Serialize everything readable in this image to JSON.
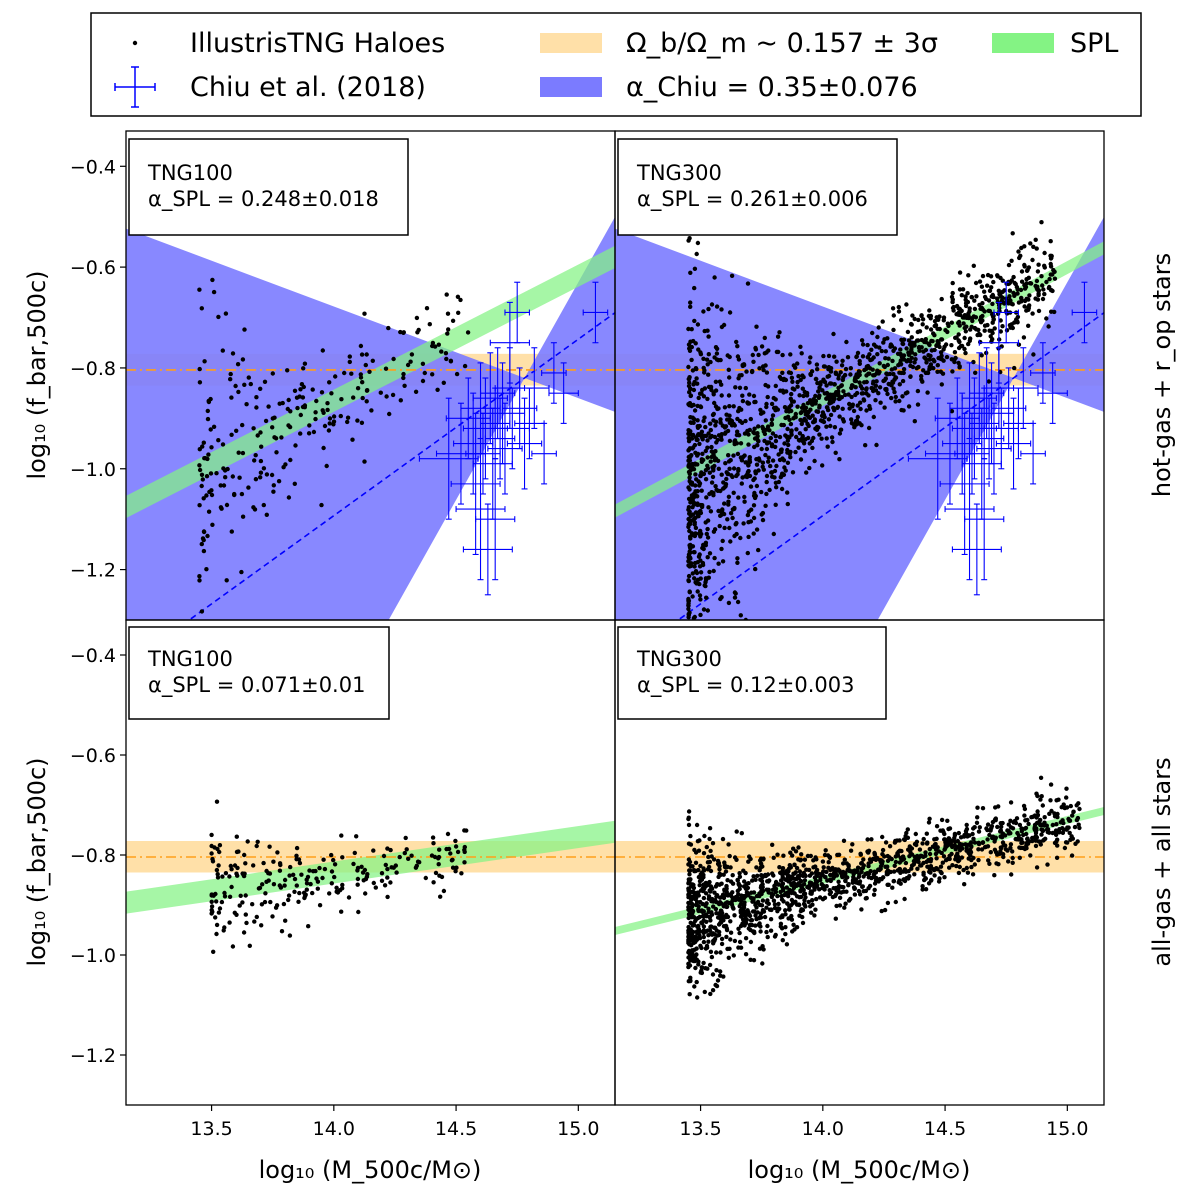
{
  "chart_data": {
    "type": "scatter",
    "xlim": [
      13.15,
      15.15
    ],
    "ylim": [
      -1.3,
      -0.33
    ],
    "x_ticks": [
      13.5,
      14.0,
      14.5,
      15.0
    ],
    "x_tick_labels": [
      "13.5",
      "14.0",
      "14.5",
      "15.0"
    ],
    "y_ticks": [
      -1.2,
      -1.0,
      -0.8,
      -0.6,
      -0.4
    ],
    "y_tick_labels": [
      "−1.2",
      "−1.0",
      "−0.8",
      "−0.6",
      "−0.4"
    ],
    "ylabel": "log₁₀ (f_bar,500c)",
    "xlabel": "log₁₀ (M_500c/M⊙)",
    "row_labels": [
      "hot-gas + r_op stars",
      "all-gas + all stars"
    ],
    "baryon_fraction": {
      "log_value": -0.804,
      "band": [
        -0.835,
        -0.772
      ]
    },
    "chiu_fit": {
      "alpha": 0.35,
      "pivot_x": 14.78,
      "pivot_y": -0.82,
      "at_x15_low": -0.86,
      "at_x15_high": -0.63
    },
    "colors": {
      "haloes": "#000000",
      "chiu": "#0000ff",
      "chiu_band": "#7b7bff",
      "baryon_band": "#ffe0a8",
      "baryon_line": "#ff9f1a",
      "spl_band": "#84f384"
    },
    "legend": {
      "placement": "top",
      "entries": [
        {
          "label": "IllustrisTNG Haloes",
          "marker": "dot"
        },
        {
          "label": "Chiu et al. (2018)",
          "marker": "errorbar"
        },
        {
          "label": "Ω_b/Ω_m ~ 0.157 ± 3σ",
          "marker": "baryon-band"
        },
        {
          "label": "α_Chiu = 0.35±0.076",
          "marker": "chiu-band"
        },
        {
          "label": "SPL",
          "marker": "spl-band"
        }
      ]
    },
    "chiu_points": [
      [
        14.47,
        -0.98,
        0.12,
        0.12
      ],
      [
        14.52,
        -0.97,
        0.1,
        0.1
      ],
      [
        14.55,
        -0.9,
        0.09,
        0.08
      ],
      [
        14.57,
        -0.95,
        0.08,
        0.1
      ],
      [
        14.58,
        -1.03,
        0.1,
        0.14
      ],
      [
        14.6,
        -0.88,
        0.08,
        0.09
      ],
      [
        14.6,
        -1.08,
        0.1,
        0.14
      ],
      [
        14.61,
        -0.97,
        0.07,
        0.08
      ],
      [
        14.62,
        -0.92,
        0.09,
        0.1
      ],
      [
        14.63,
        -1.16,
        0.1,
        0.09
      ],
      [
        14.64,
        -0.86,
        0.07,
        0.09
      ],
      [
        14.65,
        -0.99,
        0.08,
        0.11
      ],
      [
        14.66,
        -0.91,
        0.06,
        0.07
      ],
      [
        14.66,
        -1.1,
        0.08,
        0.12
      ],
      [
        14.67,
        -0.85,
        0.07,
        0.09
      ],
      [
        14.68,
        -0.94,
        0.06,
        0.08
      ],
      [
        14.69,
        -0.89,
        0.09,
        0.1
      ],
      [
        14.7,
        -0.96,
        0.07,
        0.09
      ],
      [
        14.72,
        -0.75,
        0.08,
        0.08
      ],
      [
        14.72,
        -0.84,
        0.06,
        0.08
      ],
      [
        14.73,
        -0.92,
        0.07,
        0.08
      ],
      [
        14.75,
        -0.69,
        0.05,
        0.06
      ],
      [
        14.76,
        -0.88,
        0.07,
        0.08
      ],
      [
        14.78,
        -0.95,
        0.07,
        0.09
      ],
      [
        14.8,
        -0.91,
        0.06,
        0.07
      ],
      [
        14.82,
        -0.84,
        0.06,
        0.08
      ],
      [
        14.86,
        -0.97,
        0.05,
        0.06
      ],
      [
        14.9,
        -0.81,
        0.05,
        0.06
      ],
      [
        14.94,
        -0.85,
        0.06,
        0.06
      ],
      [
        15.07,
        -0.69,
        0.05,
        0.06
      ]
    ],
    "panels": [
      {
        "name": "TNG100",
        "row": 0,
        "col": 0,
        "label_text": "TNG100",
        "alpha_text": "α_SPL = 0.248±0.018",
        "spl": {
          "slope": 0.248,
          "x0": 14.0,
          "y0": -0.865,
          "w": 0.022
        },
        "halo": {
          "n": 260,
          "seed": 11,
          "xmin": 13.45,
          "xmax": 14.55,
          "slope": 0.26,
          "x0": 14.0,
          "y0": -0.87,
          "scatter": 0.05,
          "taper": 0.1
        },
        "show_chiu": true
      },
      {
        "name": "TNG300",
        "row": 0,
        "col": 1,
        "label_text": "TNG300",
        "alpha_text": "α_SPL = 0.261±0.006",
        "spl": {
          "slope": 0.261,
          "x0": 14.0,
          "y0": -0.862,
          "w": 0.013
        },
        "halo": {
          "n": 1600,
          "seed": 23,
          "xmin": 13.45,
          "xmax": 14.95,
          "slope": 0.27,
          "x0": 14.0,
          "y0": -0.875,
          "scatter": 0.045,
          "taper": 0.14
        },
        "show_chiu": true
      },
      {
        "name": "TNG100",
        "row": 1,
        "col": 0,
        "label_text": "TNG100",
        "alpha_text": "α_SPL = 0.071±0.01",
        "spl": {
          "slope": 0.071,
          "x0": 14.0,
          "y0": -0.835,
          "w": 0.022
        },
        "halo": {
          "n": 240,
          "seed": 37,
          "xmin": 13.5,
          "xmax": 14.55,
          "slope": 0.07,
          "x0": 14.0,
          "y0": -0.84,
          "scatter": 0.03,
          "taper": 0.04
        },
        "show_chiu": false
      },
      {
        "name": "TNG300",
        "row": 1,
        "col": 1,
        "label_text": "TNG300",
        "alpha_text": "α_SPL = 0.12±0.003",
        "spl": {
          "slope": 0.12,
          "x0": 14.0,
          "y0": -0.85,
          "w": 0.008
        },
        "halo": {
          "n": 1500,
          "seed": 53,
          "xmin": 13.45,
          "xmax": 15.05,
          "slope": 0.12,
          "x0": 14.0,
          "y0": -0.855,
          "scatter": 0.03,
          "taper": 0.05
        },
        "show_chiu": false
      }
    ]
  }
}
